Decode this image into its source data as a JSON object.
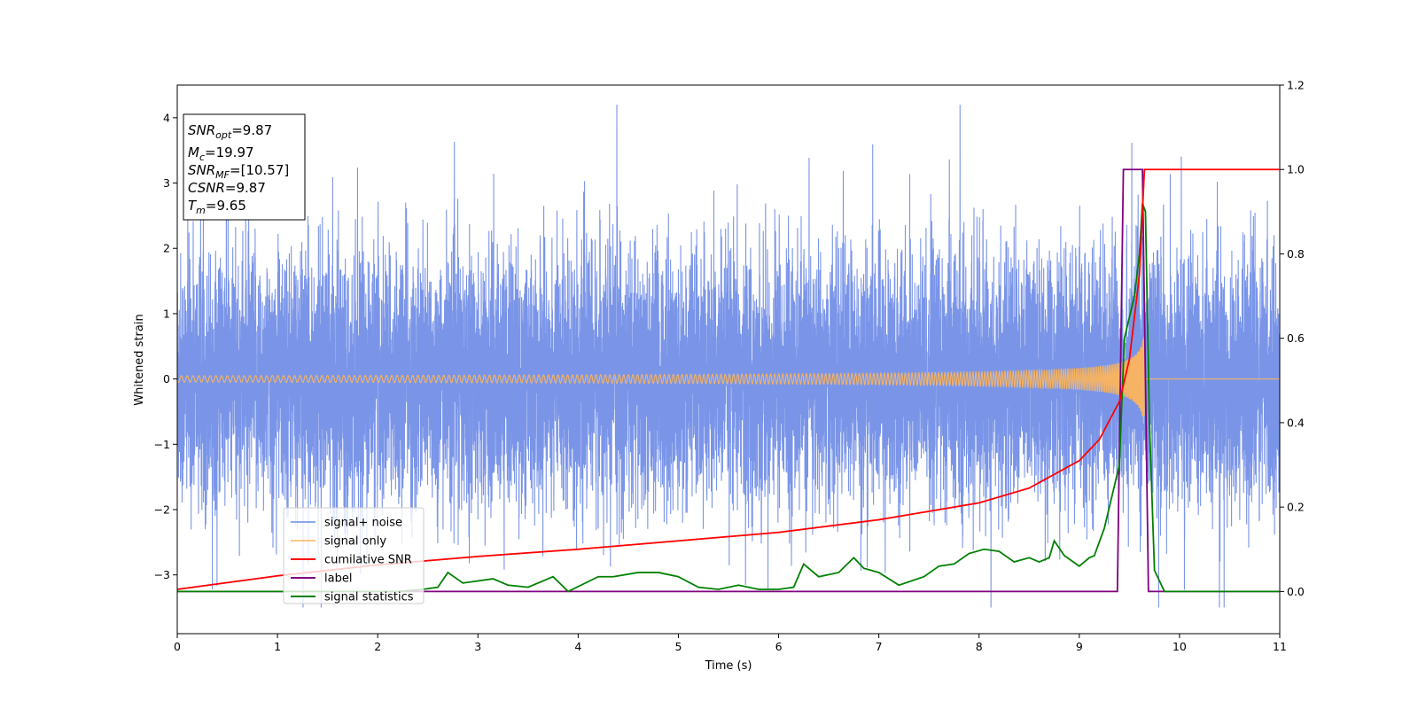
{
  "chart_data": {
    "type": "line",
    "xlabel": "Time (s)",
    "ylabel": "Whitened strain",
    "xlim": [
      0,
      11
    ],
    "ylim_left": [
      -3.9,
      4.5
    ],
    "ylim_right": [
      -0.1,
      1.2
    ],
    "x_ticks": [
      0,
      1,
      2,
      3,
      4,
      5,
      6,
      7,
      8,
      9,
      10,
      11
    ],
    "y_ticks_left": [
      -3,
      -2,
      -1,
      0,
      1,
      2,
      3,
      4
    ],
    "y_ticks_right": [
      "0.0",
      "0.2",
      "0.4",
      "0.6",
      "0.8",
      "1.0",
      "1.2"
    ],
    "grid": false,
    "legend_position": "lower-left",
    "annotation": {
      "lines": [
        {
          "sym": "SNR",
          "sub": "opt",
          "val": "=9.87"
        },
        {
          "sym": "M",
          "sub": "c",
          "val": "=19.97"
        },
        {
          "sym": "SNR",
          "sub": "MF",
          "val": "=[10.57]"
        },
        {
          "sym": "CSNR",
          "sub": "",
          "val": "=9.87"
        },
        {
          "sym": "T",
          "sub": "m",
          "val": "=9.65"
        }
      ]
    },
    "series": [
      {
        "name": "signal+ noise",
        "axis": "left",
        "color": "#6b8ae6",
        "note": "white noise, sd ~1.0, x from 0 to 11"
      },
      {
        "name": "signal only",
        "axis": "left",
        "color": "#f5b363",
        "note": "chirp, amplitude ~0.05 rising to ~0.7 near 9.65, zero after"
      },
      {
        "name": "cumilative SNR",
        "axis": "right",
        "color": "#ff0000",
        "x": [
          0,
          1,
          2,
          3,
          4,
          5,
          6,
          7,
          8,
          8.5,
          9,
          9.2,
          9.4,
          9.5,
          9.6,
          9.65,
          9.7,
          11
        ],
        "y": [
          0.005,
          0.037,
          0.063,
          0.083,
          0.1,
          0.12,
          0.14,
          0.17,
          0.21,
          0.245,
          0.31,
          0.36,
          0.45,
          0.55,
          0.75,
          1.0,
          1.0,
          1.0
        ]
      },
      {
        "name": "label",
        "axis": "right",
        "color": "#800080",
        "x": [
          0,
          9.38,
          9.44,
          9.63,
          9.69,
          11
        ],
        "y": [
          0,
          0,
          1,
          1,
          0,
          0
        ]
      },
      {
        "name": "signal statistics",
        "axis": "right",
        "color": "#008000",
        "x": [
          0,
          2.2,
          2.45,
          2.6,
          2.7,
          2.85,
          3.0,
          3.15,
          3.3,
          3.5,
          3.75,
          3.9,
          4.2,
          4.35,
          4.6,
          4.8,
          5.0,
          5.2,
          5.4,
          5.6,
          5.8,
          6.0,
          6.15,
          6.25,
          6.4,
          6.6,
          6.75,
          6.85,
          7.0,
          7.2,
          7.45,
          7.6,
          7.75,
          7.9,
          8.05,
          8.2,
          8.35,
          8.5,
          8.6,
          8.7,
          8.75,
          8.85,
          9.0,
          9.1,
          9.15,
          9.25,
          9.3,
          9.35,
          9.4,
          9.45,
          9.5,
          9.55,
          9.6,
          9.63,
          9.66,
          9.7,
          9.75,
          9.85,
          11
        ],
        "y": [
          0,
          0,
          0.005,
          0.01,
          0.045,
          0.02,
          0.025,
          0.03,
          0.015,
          0.01,
          0.035,
          0.0,
          0.035,
          0.035,
          0.045,
          0.045,
          0.035,
          0.01,
          0.005,
          0.015,
          0.005,
          0.005,
          0.01,
          0.065,
          0.035,
          0.045,
          0.08,
          0.055,
          0.045,
          0.015,
          0.035,
          0.06,
          0.065,
          0.09,
          0.1,
          0.095,
          0.07,
          0.08,
          0.07,
          0.08,
          0.12,
          0.085,
          0.06,
          0.08,
          0.085,
          0.15,
          0.2,
          0.25,
          0.3,
          0.6,
          0.65,
          0.7,
          0.8,
          0.92,
          0.9,
          0.4,
          0.05,
          0.0,
          0.0
        ]
      }
    ]
  }
}
